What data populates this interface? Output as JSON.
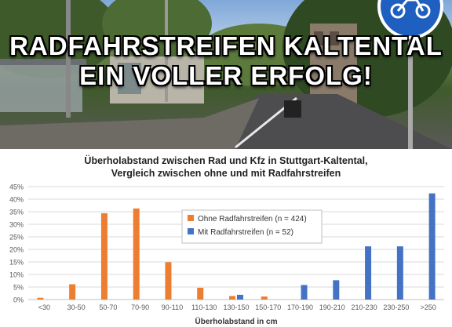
{
  "headline": {
    "line1": "RADFAHRSTREIFEN KALTENTAL",
    "line2": "EIN VOLLER ERFOLG!"
  },
  "colors": {
    "series_ohne": "#ed7d31",
    "series_mit": "#4472c4",
    "sign_blue": "#1f5fbf"
  },
  "chart_data": {
    "type": "bar",
    "title": "Überholabstand zwischen Rad und Kfz in Stuttgart-Kaltental,",
    "subtitle": "Vergleich zwischen ohne und mit Radfahrstreifen",
    "xlabel": "Überholabstand in cm",
    "ylabel": "",
    "ylim": [
      0,
      45
    ],
    "yticks": [
      "0%",
      "5%",
      "10%",
      "15%",
      "20%",
      "25%",
      "30%",
      "35%",
      "40%",
      "45%"
    ],
    "categories": [
      "<30",
      "30-50",
      "50-70",
      "70-90",
      "90-110",
      "110-130",
      "130-150",
      "150-170",
      "170-190",
      "190-210",
      "210-230",
      "230-250",
      ">250"
    ],
    "series": [
      {
        "name": "Ohne Radfahrstreifen (n = 424)",
        "color": "#ed7d31",
        "values": [
          0.7,
          6.1,
          34.4,
          36.3,
          14.9,
          4.7,
          1.4,
          1.2,
          0,
          0,
          0,
          0,
          0
        ]
      },
      {
        "name": "Mit Radfahrstreifen (n = 52)",
        "color": "#4472c4",
        "values": [
          0,
          0,
          0,
          0,
          0,
          0,
          1.9,
          0,
          5.8,
          7.7,
          21.2,
          21.2,
          42.3
        ]
      }
    ],
    "grid": true,
    "legend_position": "center"
  }
}
